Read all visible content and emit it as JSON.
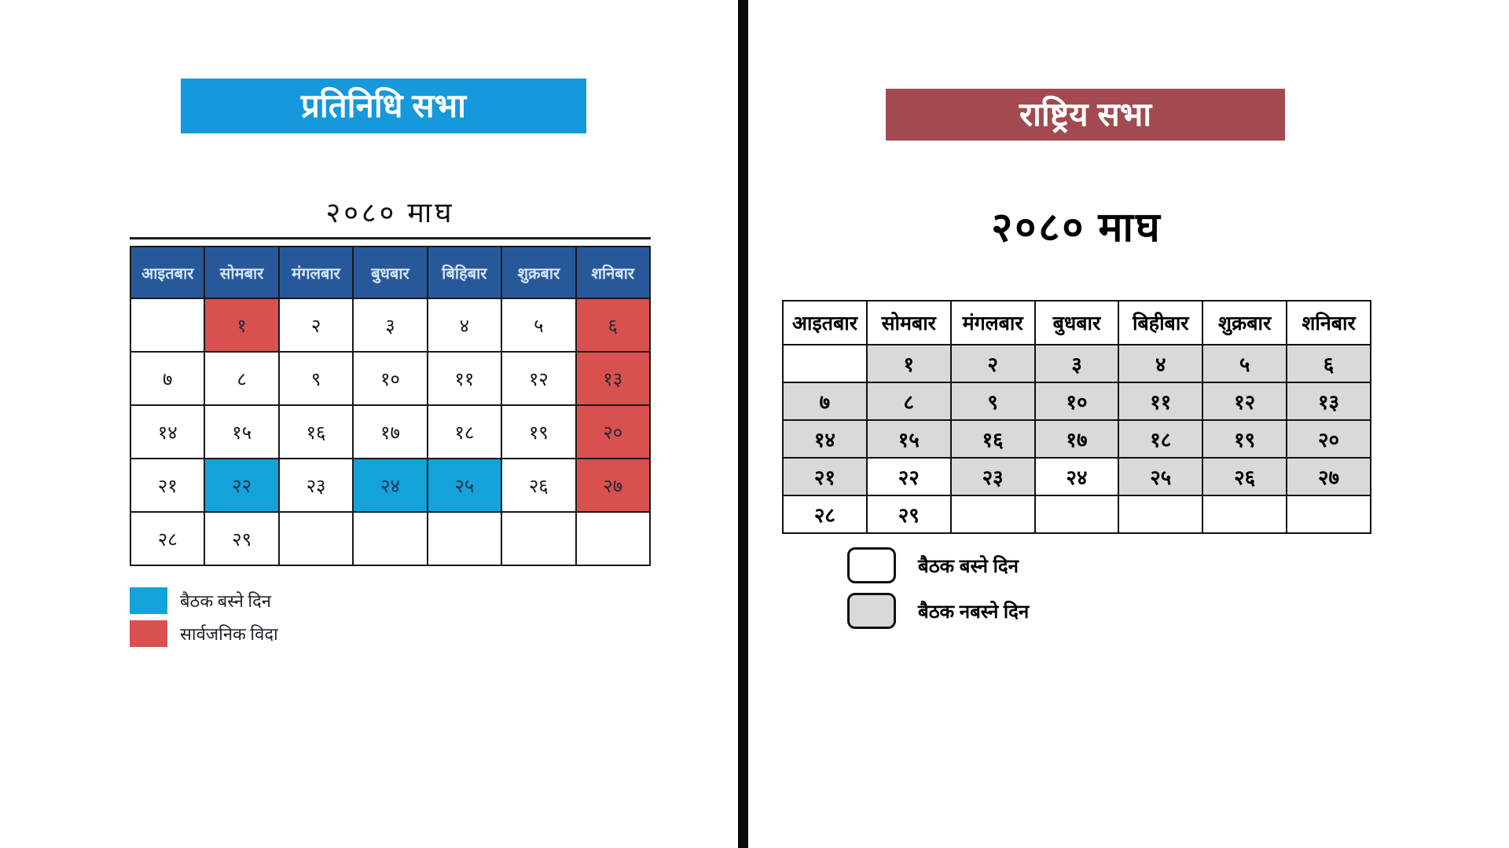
{
  "left_panel": {
    "banner": "प्रतिनिधि सभा",
    "calendar_title": "२०८० माघ",
    "weekdays": [
      "आइतबार",
      "सोमबार",
      "मंगलबार",
      "बुधबार",
      "बिहिबार",
      "शुक्रबार",
      "शनिबार"
    ],
    "rows": [
      [
        {
          "d": "",
          "t": ""
        },
        {
          "d": "१",
          "t": "holiday"
        },
        {
          "d": "२",
          "t": ""
        },
        {
          "d": "३",
          "t": ""
        },
        {
          "d": "४",
          "t": ""
        },
        {
          "d": "५",
          "t": ""
        },
        {
          "d": "६",
          "t": "holiday"
        }
      ],
      [
        {
          "d": "७",
          "t": ""
        },
        {
          "d": "८",
          "t": ""
        },
        {
          "d": "९",
          "t": ""
        },
        {
          "d": "१०",
          "t": ""
        },
        {
          "d": "११",
          "t": ""
        },
        {
          "d": "१२",
          "t": ""
        },
        {
          "d": "१३",
          "t": "holiday"
        }
      ],
      [
        {
          "d": "१४",
          "t": ""
        },
        {
          "d": "१५",
          "t": ""
        },
        {
          "d": "१६",
          "t": ""
        },
        {
          "d": "१७",
          "t": ""
        },
        {
          "d": "१८",
          "t": ""
        },
        {
          "d": "१९",
          "t": ""
        },
        {
          "d": "२०",
          "t": "holiday"
        }
      ],
      [
        {
          "d": "२१",
          "t": ""
        },
        {
          "d": "२२",
          "t": "meeting"
        },
        {
          "d": "२३",
          "t": ""
        },
        {
          "d": "२४",
          "t": "meeting"
        },
        {
          "d": "२५",
          "t": "meeting"
        },
        {
          "d": "२६",
          "t": ""
        },
        {
          "d": "२७",
          "t": "holiday"
        }
      ],
      [
        {
          "d": "२८",
          "t": ""
        },
        {
          "d": "२९",
          "t": ""
        },
        {
          "d": "",
          "t": ""
        },
        {
          "d": "",
          "t": ""
        },
        {
          "d": "",
          "t": ""
        },
        {
          "d": "",
          "t": ""
        },
        {
          "d": "",
          "t": ""
        }
      ]
    ],
    "legend": [
      {
        "label": "बैठक बस्ने दिन"
      },
      {
        "label": "सार्वजनिक विदा"
      }
    ]
  },
  "right_panel": {
    "banner": "राष्ट्रिय सभा",
    "calendar_title": "२०८० माघ",
    "weekdays": [
      "आइतबार",
      "सोमबार",
      "मंगलबार",
      "बुधबार",
      "बिहीबार",
      "शुक्रबार",
      "शनिबार"
    ],
    "rows": [
      [
        {
          "d": "",
          "t": ""
        },
        {
          "d": "१",
          "t": "off"
        },
        {
          "d": "२",
          "t": "off"
        },
        {
          "d": "३",
          "t": "off"
        },
        {
          "d": "४",
          "t": "off"
        },
        {
          "d": "५",
          "t": "off"
        },
        {
          "d": "६",
          "t": "off"
        }
      ],
      [
        {
          "d": "७",
          "t": "off"
        },
        {
          "d": "८",
          "t": "off"
        },
        {
          "d": "९",
          "t": "off"
        },
        {
          "d": "१०",
          "t": "off"
        },
        {
          "d": "११",
          "t": "off"
        },
        {
          "d": "१२",
          "t": "off"
        },
        {
          "d": "१३",
          "t": "off"
        }
      ],
      [
        {
          "d": "१४",
          "t": "off"
        },
        {
          "d": "१५",
          "t": "off"
        },
        {
          "d": "१६",
          "t": "off"
        },
        {
          "d": "१७",
          "t": "off"
        },
        {
          "d": "१८",
          "t": "off"
        },
        {
          "d": "१९",
          "t": "off"
        },
        {
          "d": "२०",
          "t": "off"
        }
      ],
      [
        {
          "d": "२१",
          "t": "off"
        },
        {
          "d": "२२",
          "t": ""
        },
        {
          "d": "२३",
          "t": "off"
        },
        {
          "d": "२४",
          "t": ""
        },
        {
          "d": "२५",
          "t": "off"
        },
        {
          "d": "२६",
          "t": "off"
        },
        {
          "d": "२७",
          "t": "off"
        }
      ],
      [
        {
          "d": "२८",
          "t": ""
        },
        {
          "d": "२९",
          "t": ""
        },
        {
          "d": "",
          "t": ""
        },
        {
          "d": "",
          "t": ""
        },
        {
          "d": "",
          "t": ""
        },
        {
          "d": "",
          "t": ""
        },
        {
          "d": "",
          "t": ""
        }
      ]
    ],
    "legend": [
      {
        "label": "बैठक बस्ने दिन"
      },
      {
        "label": "बैठक नबस्ने दिन"
      }
    ]
  },
  "colors": {
    "left_banner_blue": "#1598dc",
    "left_header_blue": "#27599a",
    "left_header_text": "#d3e4f4",
    "holiday_red": "#d9514f",
    "meeting_blue": "#13a3da",
    "right_banner_maroon": "#a34a50",
    "non_meeting_gray": "#d9d9d9",
    "divider_black": "#0a0a0a"
  }
}
